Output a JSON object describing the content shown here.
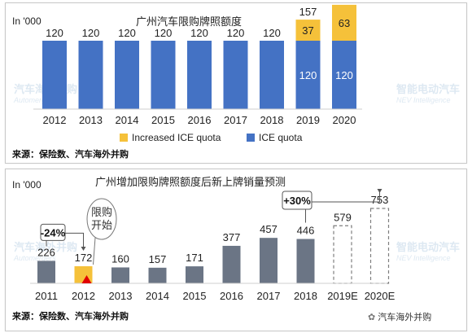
{
  "footer_brand": "汽车海外并购",
  "watermarks": {
    "left_text": "汽车海外并购",
    "left_sub": "Automergers",
    "right_text": "智能电动汽车",
    "right_sub": "NEV Intelligence"
  },
  "colors": {
    "ice": "#4472C4",
    "increased": "#F5C13A",
    "grey_bar": "#6B7585",
    "label_red": "#E00000",
    "red_triangle": "#E00000"
  },
  "chart_data": [
    {
      "type": "bar",
      "stacked": true,
      "title": "广州汽车限购牌照额度",
      "unit_label": "In '000",
      "source": "来源：保险数、汽车海外并购",
      "categories": [
        "2012",
        "2013",
        "2014",
        "2015",
        "2016",
        "2017",
        "2018",
        "2019",
        "2020"
      ],
      "series": [
        {
          "name": "ICE quota",
          "values": [
            120,
            120,
            120,
            120,
            120,
            120,
            120,
            120,
            120
          ],
          "color": "#4472C4"
        },
        {
          "name": "Increased ICE quota",
          "values": [
            0,
            0,
            0,
            0,
            0,
            0,
            0,
            37,
            63
          ],
          "color": "#F5C13A"
        }
      ],
      "totals": [
        null,
        null,
        null,
        null,
        null,
        null,
        null,
        157,
        183
      ],
      "legend": [
        "Increased ICE quota",
        "ICE quota"
      ],
      "legend_position": "bottom",
      "ylim": [
        0,
        190
      ],
      "grid": false
    },
    {
      "type": "bar",
      "title": "广州增加限购牌照额度后新上牌销量预测",
      "unit_label": "In '000",
      "source": "来源：保险数、汽车海外并购",
      "categories": [
        "2011",
        "2012",
        "2013",
        "2014",
        "2015",
        "2016",
        "2017",
        "2018",
        "2019E",
        "2020E"
      ],
      "values": [
        226,
        172,
        160,
        157,
        171,
        377,
        457,
        446,
        579,
        753
      ],
      "forecast": [
        false,
        false,
        false,
        false,
        false,
        false,
        false,
        false,
        true,
        true
      ],
      "highlight": [
        false,
        true,
        false,
        false,
        false,
        false,
        false,
        false,
        false,
        false
      ],
      "ylim": [
        0,
        800
      ],
      "grid": false,
      "annotations": {
        "decline_label": "-24%",
        "growth_label": "+30%",
        "callout_text": "限购开始",
        "callout_year": "2012"
      }
    }
  ]
}
